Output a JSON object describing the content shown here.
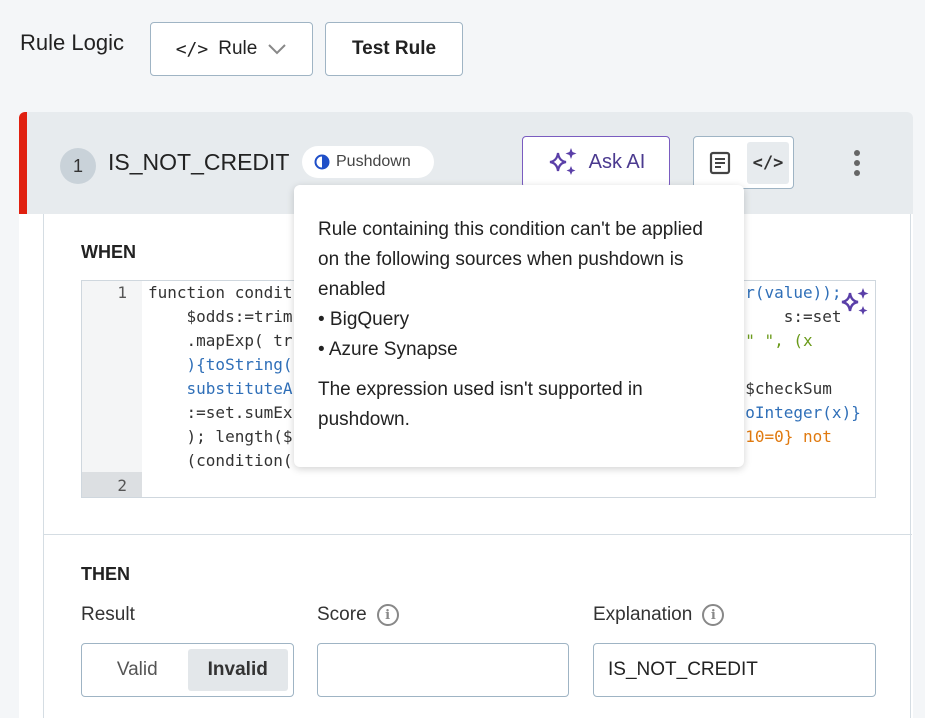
{
  "header": {
    "title": "Rule Logic",
    "mode_dropdown": "Rule",
    "test_button": "Test Rule"
  },
  "rule": {
    "number": "1",
    "name": "IS_NOT_CREDIT",
    "badge": "Pushdown",
    "ask_ai": "Ask AI",
    "accent": "#e02010"
  },
  "when": {
    "label": "WHEN",
    "lines": [
      {
        "n": "1",
        "left": "function condit",
        "right": "r(value));"
      },
      {
        "left": "    $odds:=trim",
        "right": "s:=set"
      },
      {
        "left": "    .mapExp( tr",
        "right": "\" \", (x"
      },
      {
        "left": "    ){toString(",
        "right": ""
      },
      {
        "left": "    substituteA",
        "right": "$checkSum"
      },
      {
        "left": "    :=set.sumEx",
        "right": "oInteger(x)}"
      },
      {
        "left": "    ); length($",
        "right": "10=0} not"
      },
      {
        "left": "    (condition(",
        "right": ""
      },
      {
        "n": "2",
        "left": "",
        "right": ""
      }
    ]
  },
  "tooltip": {
    "text": "Rule containing this condition can't be applied on the following sources when pushdown is enabled",
    "sources": [
      "• BigQuery",
      "• Azure Synapse"
    ],
    "note": "The expression used isn't supported in pushdown."
  },
  "then": {
    "label": "THEN",
    "result_label": "Result",
    "result_options": [
      "Valid",
      "Invalid"
    ],
    "result_selected": "Invalid",
    "score_label": "Score",
    "score_value": "",
    "explanation_label": "Explanation",
    "explanation_value": "IS_NOT_CREDIT"
  }
}
